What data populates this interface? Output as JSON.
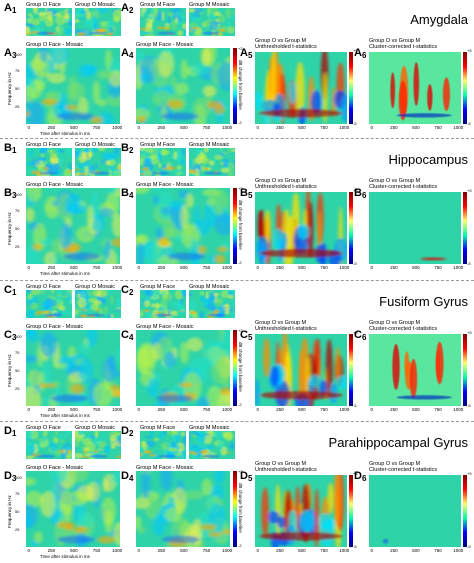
{
  "sections": [
    {
      "region": "Amygdala",
      "labels": {
        "p1": "A",
        "p2": "A",
        "p3": "A",
        "p4": "A",
        "p5": "A",
        "p6": "A"
      },
      "subs": {
        "p1": "1",
        "p2": "2",
        "p3": "3",
        "p4": "4",
        "p5": "5",
        "p6": "6"
      },
      "titles": {
        "o_face": "Group O Face",
        "o_mosaic": "Group O Mosaic",
        "m_face": "Group M Face",
        "m_mosaic": "Group M Mosaic",
        "o_diff": "Group O Face - Mosaic",
        "m_diff": "Group M Face - Mosaic",
        "unthr_1": "Group O vs Group M",
        "unthr_2": "Unthresholded t-statistics",
        "corr_1": "Group O vs Group M",
        "corr_2": "Cluster-corrected t-statistics"
      }
    },
    {
      "region": "Hippocampus",
      "labels": {
        "p1": "B",
        "p2": "B",
        "p3": "B",
        "p4": "B",
        "p5": "B",
        "p6": "B"
      },
      "subs": {
        "p1": "1",
        "p2": "2",
        "p3": "3",
        "p4": "4",
        "p5": "5",
        "p6": "6"
      },
      "titles": {
        "o_face": "Group O Face",
        "o_mosaic": "Group O Mosaic",
        "m_face": "Group M Face",
        "m_mosaic": "Group M Mosaic",
        "o_diff": "Group O Face - Mosaic",
        "m_diff": "Group M Face - Mosaic",
        "unthr_1": "Group O vs Group M",
        "unthr_2": "Unthresholded t-statistics",
        "corr_1": "Group O vs Group M",
        "corr_2": "Cluster-corrected t-statistics"
      }
    },
    {
      "region": "Fusiform Gyrus",
      "labels": {
        "p1": "C",
        "p2": "C",
        "p3": "C",
        "p4": "C",
        "p5": "C",
        "p6": "C"
      },
      "subs": {
        "p1": "1",
        "p2": "2",
        "p3": "3",
        "p4": "4",
        "p5": "5",
        "p6": "6"
      },
      "titles": {
        "o_face": "Group O Face",
        "o_mosaic": "Group O Mosaic",
        "m_face": "Group M Face",
        "m_mosaic": "Group M Mosaic",
        "o_diff": "Group O Face - Mosaic",
        "m_diff": "Group M Face - Mosaic",
        "unthr_1": "Group O vs Group M",
        "unthr_2": "Unthresholded t-statistics",
        "corr_1": "Group O vs Group M",
        "corr_2": "Cluster-corrected t-statistics"
      }
    },
    {
      "region": "Parahippocampal Gyrus",
      "labels": {
        "p1": "D",
        "p2": "D",
        "p3": "D",
        "p4": "D",
        "p5": "D",
        "p6": "D"
      },
      "subs": {
        "p1": "1",
        "p2": "2",
        "p3": "3",
        "p4": "4",
        "p5": "5",
        "p6": "6"
      },
      "titles": {
        "o_face": "Group O Face",
        "o_mosaic": "Group O Mosaic",
        "m_face": "Group M Face",
        "m_mosaic": "Group M Mosaic",
        "o_diff": "Group O Face - Mosaic",
        "m_diff": "Group M Face - Mosaic",
        "unthr_1": "Group O vs Group M",
        "unthr_2": "Unthresholded t-statistics",
        "corr_1": "Group O vs Group M",
        "corr_2": "Cluster-corrected t-statistics"
      }
    }
  ],
  "axes": {
    "ylabel": "Frequency in Hz",
    "xlabel": "Time after stimulus in ms",
    "xticks": [
      "0",
      "250",
      "500",
      "750",
      "1000"
    ],
    "xticks_t": [
      "0",
      "250",
      "500",
      "750",
      "1000"
    ],
    "yticks": [
      "100",
      "75",
      "50",
      "25"
    ],
    "cbar_db_label": "dB change from baseline",
    "cbar_t_label": "t-statistics",
    "cbar_db_ticks": [
      "+2",
      "-2"
    ],
    "cbar_t_ticks": [
      "+5",
      "-5"
    ]
  },
  "colors": {
    "jet_bg": "#2fd3a8",
    "corrected_bg": "#59e79f"
  }
}
